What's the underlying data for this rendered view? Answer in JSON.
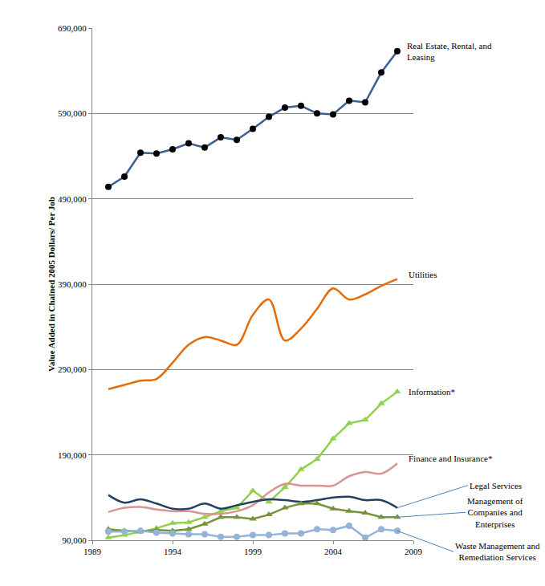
{
  "chart_data": {
    "type": "line",
    "y_label": "Value Added in Chained 2005 Dollars/ Per Job",
    "x": [
      1990,
      1991,
      1992,
      1993,
      1994,
      1995,
      1996,
      1997,
      1998,
      1999,
      2000,
      2001,
      2002,
      2003,
      2004,
      2005,
      2006,
      2007,
      2008
    ],
    "xlim": [
      1989,
      2009
    ],
    "xticks": [
      1989,
      1994,
      1999,
      2004,
      2009
    ],
    "ylim": [
      90000,
      690000
    ],
    "yticks": [
      {
        "value": 90000,
        "label": "90,000"
      },
      {
        "value": 190000,
        "label": "190,000"
      },
      {
        "value": 290000,
        "label": "290,000"
      },
      {
        "value": 390000,
        "label": "390,000"
      },
      {
        "value": 490000,
        "label": "490,000"
      },
      {
        "value": 590000,
        "label": "590,000"
      },
      {
        "value": 690000,
        "label": "690,000"
      }
    ],
    "grid": true,
    "series": [
      {
        "name": "Real Estate, Rental, and Leasing",
        "color": "#3b5f8f",
        "marker": "circle",
        "line_style": "solid",
        "values": [
          504000,
          516000,
          544000,
          543000,
          548000,
          555000,
          550000,
          562000,
          559000,
          572000,
          586000,
          597000,
          599000,
          590000,
          589000,
          605000,
          603000,
          638000,
          663000
        ]
      },
      {
        "name": "Utilities",
        "color": "#e46c0a",
        "marker": "none",
        "line_style": "smooth",
        "values": [
          267000,
          272000,
          277000,
          279000,
          298000,
          319000,
          328000,
          324000,
          319000,
          354000,
          372000,
          324000,
          338000,
          361000,
          385000,
          372000,
          378000,
          388000,
          396000
        ]
      },
      {
        "name": "Information*",
        "color": "#92d050",
        "marker": "triangle",
        "line_style": "solid",
        "values": [
          93000,
          96000,
          100000,
          104000,
          110000,
          111000,
          117000,
          124000,
          128000,
          148000,
          135000,
          152000,
          173000,
          185000,
          209000,
          227000,
          231000,
          250000,
          264000
        ]
      },
      {
        "name": "Finance and Insurance*",
        "color": "#d99594",
        "marker": "none",
        "line_style": "smooth",
        "values": [
          123000,
          128000,
          129000,
          126000,
          124000,
          124000,
          121000,
          121000,
          124000,
          131000,
          146000,
          156000,
          154000,
          154000,
          154000,
          165000,
          170000,
          168000,
          180000
        ]
      },
      {
        "name": "Legal Services",
        "color": "#254061",
        "marker": "none",
        "line_style": "smooth",
        "values": [
          143000,
          134000,
          138000,
          133000,
          127000,
          127000,
          133000,
          127000,
          131000,
          135000,
          138000,
          137000,
          135000,
          137000,
          140000,
          141000,
          137000,
          137000,
          128000
        ]
      },
      {
        "name": "Management of Companies and Enterprises",
        "color": "#77933c",
        "marker": "triangle",
        "line_style": "solid",
        "values": [
          103000,
          101000,
          100000,
          102000,
          101000,
          103000,
          109000,
          117000,
          117000,
          115000,
          120000,
          128000,
          133000,
          133000,
          127000,
          124000,
          122000,
          117000,
          117000
        ]
      },
      {
        "name": "Waste Management and Remediation Services",
        "color": "#95b3d7",
        "marker": "circle",
        "line_style": "solid",
        "values": [
          100000,
          100000,
          101000,
          99000,
          98000,
          97000,
          97000,
          94000,
          94000,
          96000,
          96000,
          98000,
          98000,
          103000,
          102000,
          107000,
          93000,
          103000,
          101000
        ]
      }
    ]
  }
}
